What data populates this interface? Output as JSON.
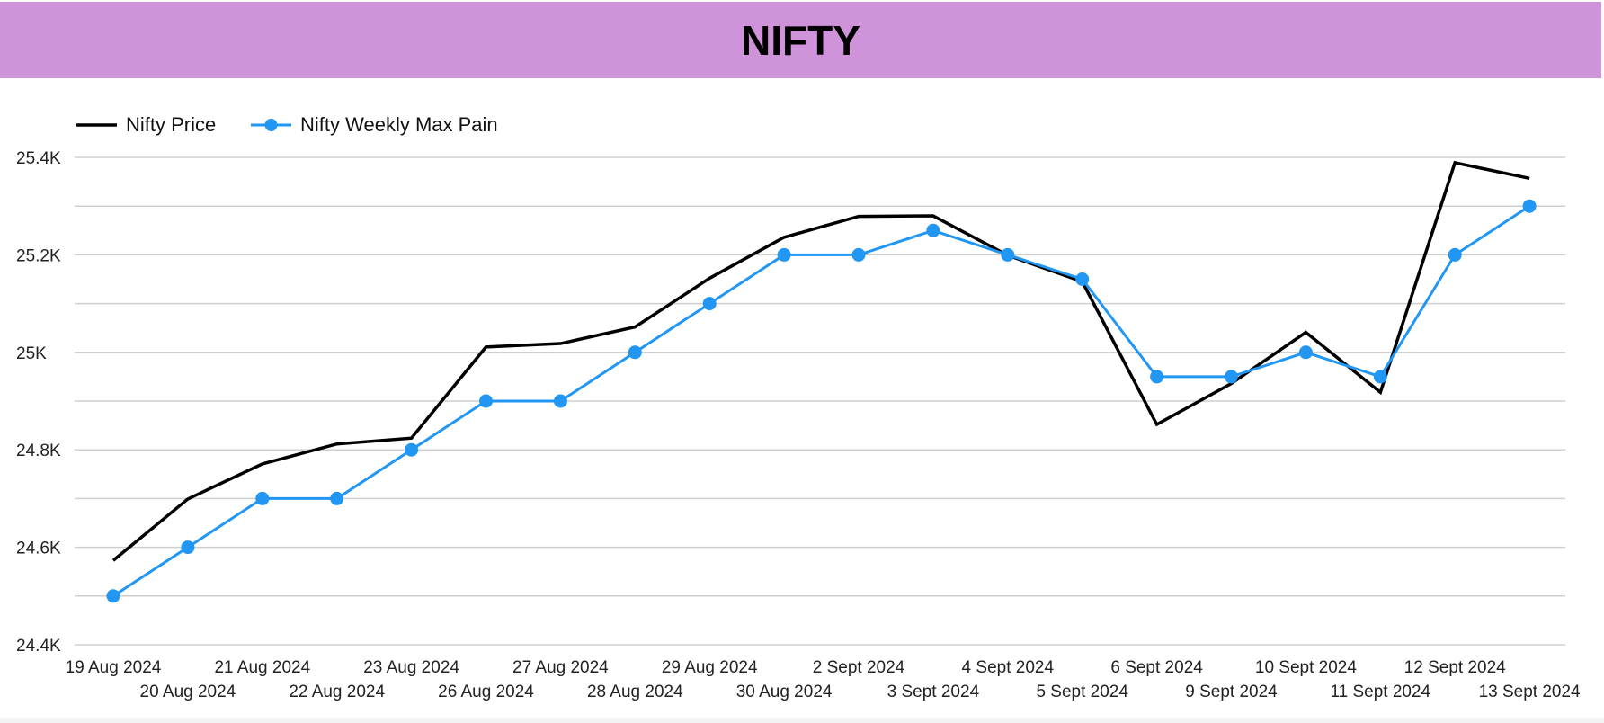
{
  "header": {
    "title": "NIFTY",
    "color": "#ce93d8"
  },
  "chart_data": {
    "type": "line",
    "title": "NIFTY",
    "x": [
      "19 Aug 2024",
      "20 Aug 2024",
      "21 Aug 2024",
      "22 Aug 2024",
      "23 Aug 2024",
      "26 Aug 2024",
      "27 Aug 2024",
      "28 Aug 2024",
      "29 Aug 2024",
      "30 Aug 2024",
      "2 Sept 2024",
      "3 Sept 2024",
      "4 Sept 2024",
      "5 Sept 2024",
      "6 Sept 2024",
      "9 Sept 2024",
      "10 Sept 2024",
      "11 Sept 2024",
      "12 Sept 2024",
      "13 Sept 2024"
    ],
    "series": [
      {
        "name": "Nifty Price",
        "color": "#000000",
        "marker": false,
        "values": [
          24573,
          24699,
          24771,
          24812,
          24824,
          25011,
          25018,
          25052,
          25152,
          25236,
          25279,
          25280,
          25199,
          25145,
          24852,
          24936,
          25041,
          24918,
          25389,
          25357
        ]
      },
      {
        "name": "Nifty Weekly Max Pain",
        "color": "#2196f3",
        "marker": true,
        "values": [
          24500,
          24600,
          24700,
          24700,
          24800,
          24900,
          24900,
          25000,
          25100,
          25200,
          25200,
          25250,
          25200,
          25150,
          24950,
          24950,
          25000,
          24950,
          25200,
          25300
        ]
      }
    ],
    "y_ticks": [
      24400,
      24600,
      24800,
      25000,
      25200,
      25400
    ],
    "y_tick_labels": [
      "24.4K",
      "24.6K",
      "24.8K",
      "25K",
      "25.2K",
      "25.4K"
    ],
    "ylim": [
      24400,
      25400
    ],
    "grid": true,
    "legend_position": "top-left"
  }
}
